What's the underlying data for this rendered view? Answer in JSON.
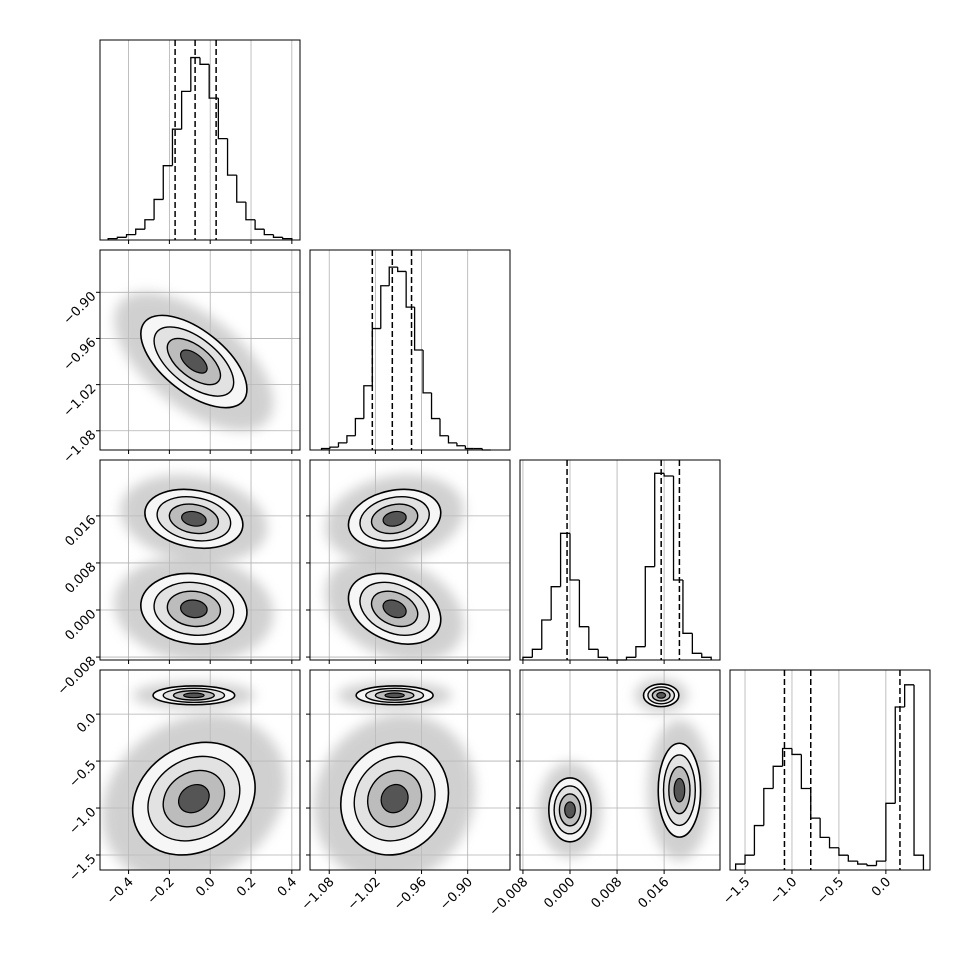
{
  "chart_data": {
    "type": "corner",
    "axes": [
      {
        "lim": [
          -0.54,
          0.44
        ],
        "ticks": [
          {
            "value": -0.4,
            "label": "−0.4"
          },
          {
            "value": -0.2,
            "label": "−0.2"
          },
          {
            "value": 0.0,
            "label": "0.0"
          },
          0.2,
          0.4
        ]
      },
      {
        "lim": [
          -1.105,
          -0.845
        ],
        "ticks": [
          {
            "value": -1.08,
            "label": "−1.08"
          },
          {
            "value": -1.02,
            "label": "−1.02"
          },
          {
            "value": -0.96,
            "label": "−0.96"
          },
          {
            "value": -0.9,
            "label": "−0.90"
          }
        ]
      },
      {
        "lim": [
          -0.0085,
          0.0255
        ],
        "ticks": [
          {
            "value": -0.008,
            "label": "−0.008"
          },
          {
            "value": 0.0,
            "label": "0.000"
          },
          0.008,
          0.016
        ]
      },
      {
        "lim": [
          -1.66,
          0.47
        ],
        "ticks": [
          {
            "value": -1.5,
            "label": "−1.5"
          },
          {
            "value": -1.0,
            "label": "−1.0"
          },
          {
            "value": -0.5,
            "label": "−0.5"
          },
          {
            "value": 0.0,
            "label": "0.0"
          }
        ]
      }
    ],
    "color": "#000000",
    "grid": true,
    "histograms": [
      {
        "bins": [
          -0.5,
          -0.455,
          -0.41,
          -0.365,
          -0.32,
          -0.275,
          -0.23,
          -0.185,
          -0.14,
          -0.095,
          -0.05,
          -0.005,
          0.04,
          0.085,
          0.13,
          0.175,
          0.22,
          0.265,
          0.31,
          0.355,
          0.4
        ],
        "values": [
          1,
          2,
          4,
          8,
          15,
          30,
          55,
          82,
          110,
          135,
          130,
          105,
          75,
          48,
          28,
          15,
          8,
          4,
          2,
          1
        ],
        "quantiles": [
          -0.172,
          -0.074,
          0.029
        ],
        "ylim": [
          0,
          148
        ]
      },
      {
        "bins": [
          -1.09,
          -1.079,
          -1.068,
          -1.057,
          -1.046,
          -1.035,
          -1.024,
          -1.013,
          -1.002,
          -0.991,
          -0.98,
          -0.969,
          -0.958,
          -0.947,
          -0.936,
          -0.925,
          -0.914,
          -0.903,
          -0.892,
          -0.881,
          -0.87
        ],
        "values": [
          1,
          2,
          5,
          10,
          22,
          45,
          85,
          115,
          128,
          125,
          100,
          70,
          40,
          22,
          10,
          5,
          3,
          1,
          1,
          0
        ],
        "quantiles": [
          -1.024,
          -0.998,
          -0.973
        ],
        "ylim": [
          0,
          140
        ]
      },
      {
        "bins": [
          -0.008,
          -0.0064,
          -0.0048,
          -0.0032,
          -0.0016,
          0.0,
          0.0016,
          0.0032,
          0.0048,
          0.0064,
          0.008,
          0.0096,
          0.0112,
          0.0128,
          0.0144,
          0.016,
          0.0176,
          0.0192,
          0.0208,
          0.0224,
          0.024
        ],
        "values": [
          2,
          8,
          30,
          55,
          95,
          60,
          25,
          8,
          2,
          0,
          0,
          2,
          10,
          70,
          140,
          138,
          60,
          20,
          5,
          2
        ],
        "quantiles": [
          -0.0005,
          0.0155,
          0.0186
        ],
        "ylim": [
          0,
          150
        ]
      },
      {
        "bins": [
          -1.6,
          -1.5,
          -1.4,
          -1.3,
          -1.2,
          -1.1,
          -1.0,
          -0.9,
          -0.8,
          -0.7,
          -0.6,
          -0.5,
          -0.4,
          -0.3,
          -0.2,
          -0.1,
          0.0,
          0.1,
          0.2,
          0.3,
          0.4
        ],
        "values": [
          4,
          10,
          30,
          55,
          70,
          82,
          78,
          55,
          35,
          22,
          15,
          10,
          6,
          4,
          3,
          6,
          45,
          110,
          125,
          10
        ],
        "quantiles": [
          -1.08,
          -0.8,
          0.15
        ],
        "ylim": [
          0,
          135
        ]
      }
    ],
    "panels": [
      {
        "x_axis": 0,
        "y_axis": 1,
        "clusters": [
          {
            "x": -0.08,
            "y": -0.99,
            "sx": 0.13,
            "sy": 0.03,
            "rho": -0.6
          }
        ]
      },
      {
        "x_axis": 0,
        "y_axis": 2,
        "clusters": [
          {
            "x": -0.08,
            "y": 0.0155,
            "sx": 0.12,
            "sy": 0.0025,
            "rho": -0.2
          },
          {
            "x": -0.08,
            "y": 0.0002,
            "sx": 0.13,
            "sy": 0.003,
            "rho": -0.1
          }
        ]
      },
      {
        "x_axis": 1,
        "y_axis": 2,
        "clusters": [
          {
            "x": -0.995,
            "y": 0.0155,
            "sx": 0.03,
            "sy": 0.0025,
            "rho": 0.2
          },
          {
            "x": -0.995,
            "y": 0.0002,
            "sx": 0.03,
            "sy": 0.003,
            "rho": -0.3
          }
        ]
      },
      {
        "x_axis": 0,
        "y_axis": 3,
        "clusters": [
          {
            "x": -0.08,
            "y": 0.2,
            "sx": 0.1,
            "sy": 0.05,
            "rho": 0.0
          },
          {
            "x": -0.08,
            "y": -0.9,
            "sx": 0.15,
            "sy": 0.3,
            "rho": 0.2
          }
        ]
      },
      {
        "x_axis": 1,
        "y_axis": 3,
        "clusters": [
          {
            "x": -0.995,
            "y": 0.2,
            "sx": 0.025,
            "sy": 0.05,
            "rho": 0.0
          },
          {
            "x": -0.995,
            "y": -0.9,
            "sx": 0.035,
            "sy": 0.3,
            "rho": 0.1
          }
        ]
      },
      {
        "x_axis": 2,
        "y_axis": 3,
        "clusters": [
          {
            "x": 0.0155,
            "y": 0.2,
            "sx": 0.0015,
            "sy": 0.06,
            "rho": 0.0
          },
          {
            "x": 0.0,
            "y": -1.02,
            "sx": 0.0018,
            "sy": 0.17,
            "rho": 0.0
          },
          {
            "x": 0.0186,
            "y": -0.81,
            "sx": 0.0018,
            "sy": 0.25,
            "rho": 0.0
          }
        ]
      }
    ]
  }
}
